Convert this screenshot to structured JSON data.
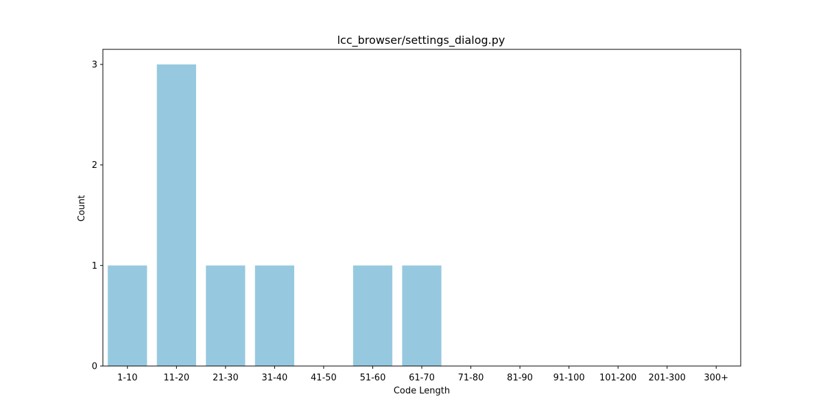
{
  "chart_data": {
    "type": "bar",
    "title": "lcc_browser/settings_dialog.py",
    "xlabel": "Code Length",
    "ylabel": "Count",
    "categories": [
      "1-10",
      "11-20",
      "21-30",
      "31-40",
      "41-50",
      "51-60",
      "61-70",
      "71-80",
      "81-90",
      "91-100",
      "101-200",
      "201-300",
      "300+"
    ],
    "values": [
      1,
      3,
      1,
      1,
      0,
      1,
      1,
      0,
      0,
      0,
      0,
      0,
      0
    ],
    "ylim": [
      0,
      3.15
    ],
    "yticks": [
      0,
      1,
      2,
      3
    ],
    "bar_color": "#96c9df",
    "grid": false,
    "legend": "none"
  }
}
